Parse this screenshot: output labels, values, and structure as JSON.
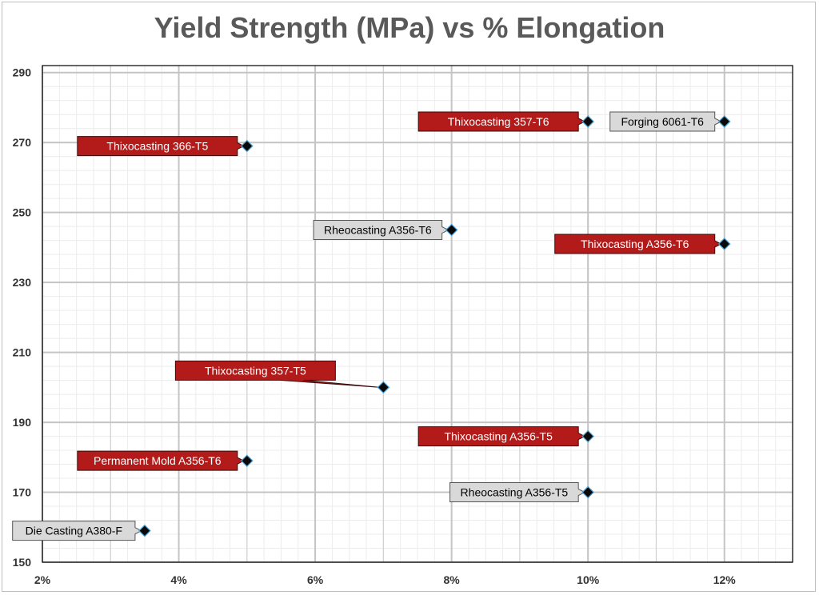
{
  "chart_data": {
    "type": "scatter",
    "title": "Yield Strength (MPa) vs % Elongation",
    "xlabel": "",
    "ylabel": "",
    "xlim": [
      2,
      13
    ],
    "ylim": [
      150,
      292
    ],
    "x_ticks": [
      2,
      4,
      6,
      8,
      10,
      12
    ],
    "x_tick_labels": [
      "2%",
      "4%",
      "6%",
      "8%",
      "10%",
      "12%"
    ],
    "y_ticks": [
      150,
      170,
      190,
      210,
      230,
      250,
      270,
      290
    ],
    "y_tick_labels": [
      "150",
      "170",
      "190",
      "210",
      "230",
      "250",
      "270",
      "290"
    ],
    "grid": true,
    "minor_grid": true,
    "legend": "none",
    "marker": "diamond",
    "colors": {
      "marker_fill": "#0a0a0a",
      "marker_edge": "#4aa3d8",
      "highlight_callout": "#b31b1b",
      "highlight_text": "#ffffff",
      "plain_callout": "#d9d9d9",
      "plain_text": "#000000",
      "major_grid": "#d0d0d0",
      "minor_grid": "#ececec"
    },
    "points": [
      {
        "label": "Thixocasting 366-T5",
        "x": 5,
        "y": 269,
        "style": "highlight",
        "callout_pos": "left"
      },
      {
        "label": "Thixocasting 357-T6",
        "x": 10,
        "y": 276,
        "style": "highlight",
        "callout_pos": "left"
      },
      {
        "label": "Forging 6061-T6",
        "x": 12,
        "y": 276,
        "style": "plain",
        "callout_pos": "left"
      },
      {
        "label": "Rheocasting A356-T6",
        "x": 8,
        "y": 245,
        "style": "plain",
        "callout_pos": "left"
      },
      {
        "label": "Thixocasting A356-T6",
        "x": 12,
        "y": 241,
        "style": "highlight",
        "callout_pos": "left"
      },
      {
        "label": "Thixocasting 357-T5",
        "x": 7,
        "y": 200,
        "style": "highlight",
        "callout_pos": "upper-left"
      },
      {
        "label": "Thixocasting A356-T5",
        "x": 10,
        "y": 186,
        "style": "highlight",
        "callout_pos": "left"
      },
      {
        "label": "Permanent Mold A356-T6",
        "x": 5,
        "y": 179,
        "style": "highlight",
        "callout_pos": "left"
      },
      {
        "label": "Rheocasting A356-T5",
        "x": 10,
        "y": 170,
        "style": "plain",
        "callout_pos": "left"
      },
      {
        "label": "Die Casting A380-F",
        "x": 3.5,
        "y": 159,
        "style": "plain",
        "callout_pos": "left"
      }
    ]
  }
}
